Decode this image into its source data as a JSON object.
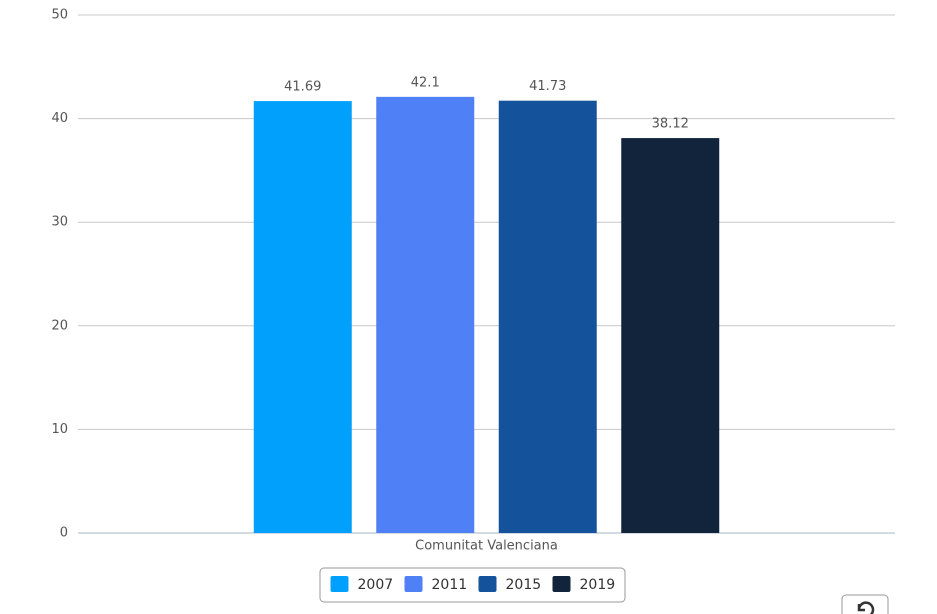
{
  "chart_data": {
    "type": "bar",
    "categories": [
      "Comunitat Valenciana"
    ],
    "series": [
      {
        "name": "2007",
        "color": "#00a0fc",
        "values": [
          41.69
        ]
      },
      {
        "name": "2011",
        "color": "#4f80f5",
        "values": [
          42.1
        ]
      },
      {
        "name": "2015",
        "color": "#15529c",
        "values": [
          41.73
        ]
      },
      {
        "name": "2019",
        "color": "#11243b",
        "values": [
          38.12
        ]
      }
    ],
    "ylim": [
      0,
      50
    ],
    "yticks": [
      0,
      10,
      20,
      30,
      40,
      50
    ],
    "grid": true,
    "legend": "bottom"
  }
}
